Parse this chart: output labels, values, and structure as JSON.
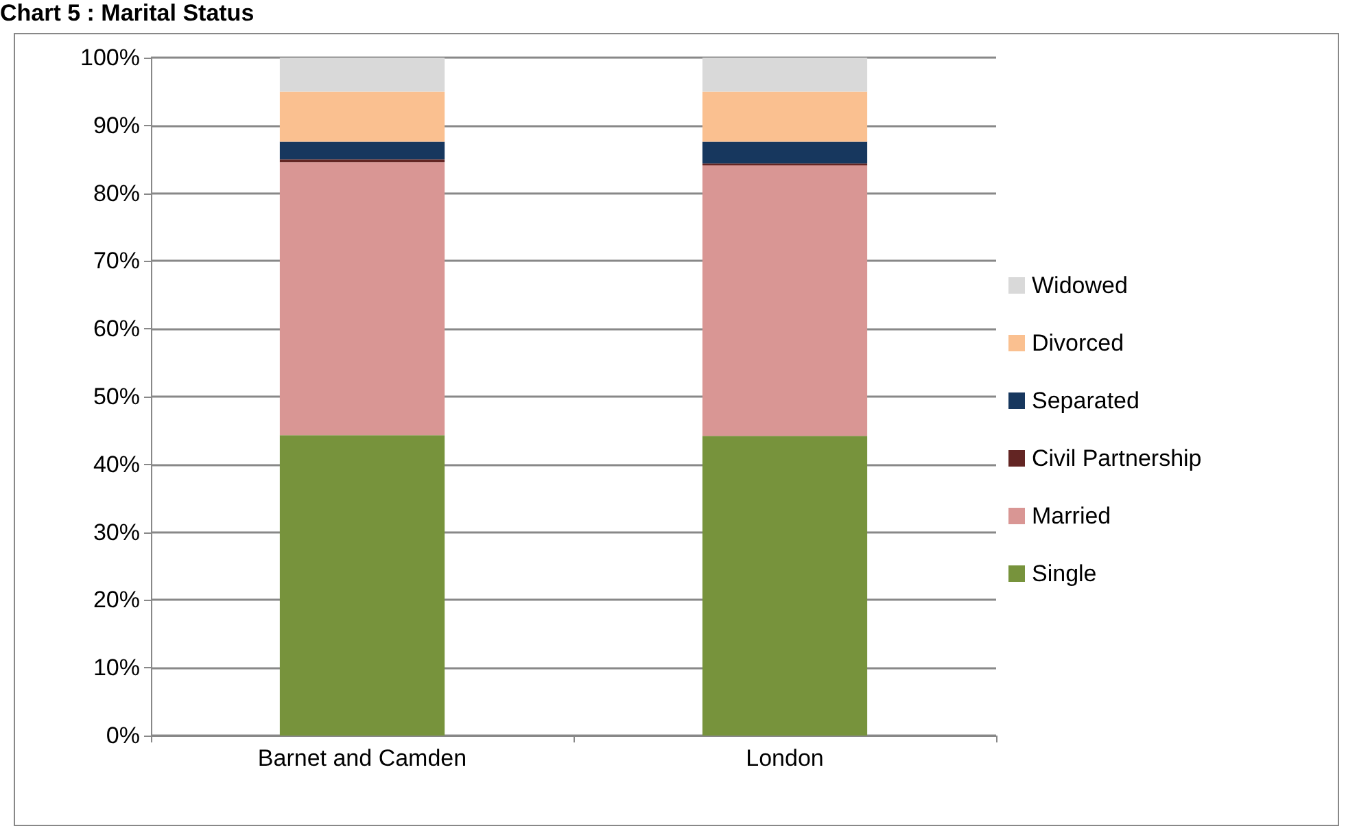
{
  "chart_data": {
    "type": "bar",
    "title": "Chart 5 : Marital Status",
    "stacked": true,
    "categories": [
      "Barnet and Camden",
      "London"
    ],
    "series": [
      {
        "name": "Single",
        "color": "#77933c",
        "values": [
          44.3,
          44.2
        ]
      },
      {
        "name": "Married",
        "color": "#d99694",
        "values": [
          40.3,
          39.9
        ]
      },
      {
        "name": "Civil Partnership",
        "color": "#632523",
        "values": [
          0.4,
          0.3
        ]
      },
      {
        "name": "Separated",
        "color": "#17375e",
        "values": [
          2.6,
          3.2
        ]
      },
      {
        "name": "Divorced",
        "color": "#fac090",
        "values": [
          7.4,
          7.4
        ]
      },
      {
        "name": "Widowed",
        "color": "#d9d9d9",
        "values": [
          5.0,
          5.0
        ]
      }
    ],
    "ylim": [
      0,
      100
    ],
    "yticks": [
      {
        "value": 0,
        "label": "0%"
      },
      {
        "value": 10,
        "label": "10%"
      },
      {
        "value": 20,
        "label": "20%"
      },
      {
        "value": 30,
        "label": "30%"
      },
      {
        "value": 40,
        "label": "40%"
      },
      {
        "value": 50,
        "label": "50%"
      },
      {
        "value": 60,
        "label": "60%"
      },
      {
        "value": 70,
        "label": "70%"
      },
      {
        "value": 80,
        "label": "80%"
      },
      {
        "value": 90,
        "label": "90%"
      },
      {
        "value": 100,
        "label": "100%"
      }
    ],
    "grid": "y",
    "legend": "right"
  }
}
